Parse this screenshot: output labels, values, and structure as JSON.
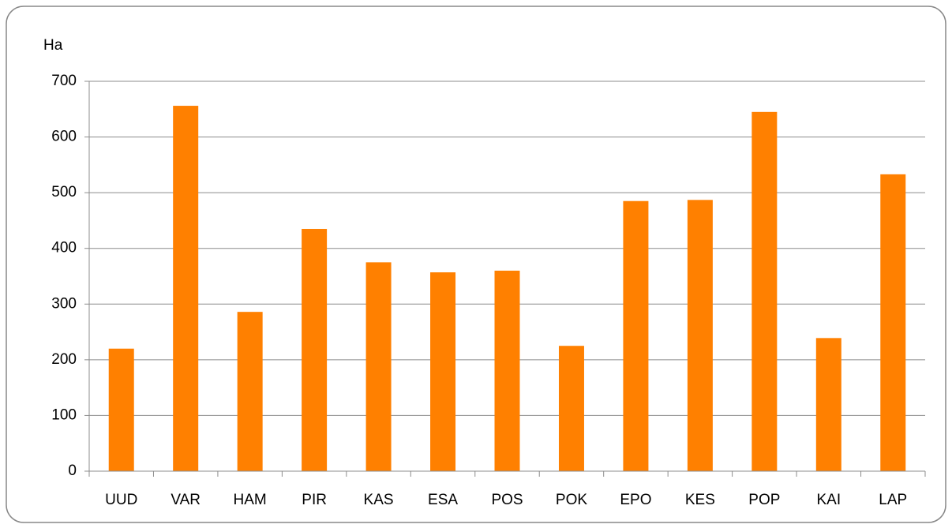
{
  "chart_data": {
    "type": "bar",
    "y_label": "Ha",
    "categories": [
      "UUD",
      "VAR",
      "HAM",
      "PIR",
      "KAS",
      "ESA",
      "POS",
      "POK",
      "EPO",
      "KES",
      "POP",
      "KAI",
      "LAP"
    ],
    "values": [
      220,
      656,
      286,
      435,
      375,
      357,
      360,
      225,
      485,
      487,
      645,
      239,
      533
    ],
    "color": "#ff8000",
    "ylim": [
      0,
      700
    ],
    "yticks": [
      0,
      100,
      200,
      300,
      400,
      500,
      600,
      700
    ],
    "grid": true
  }
}
